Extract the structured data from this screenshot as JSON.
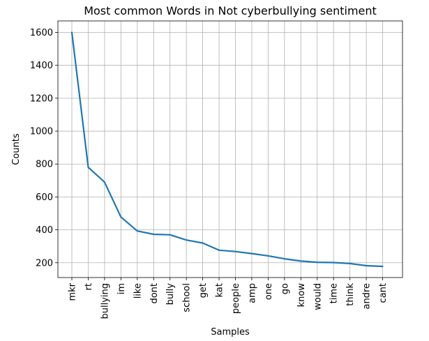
{
  "chart_data": {
    "type": "line",
    "title": "Most common Words in Not cyberbullying sentiment",
    "xlabel": "Samples",
    "ylabel": "Counts",
    "categories": [
      "mkr",
      "rt",
      "bullying",
      "im",
      "like",
      "dont",
      "bully",
      "school",
      "get",
      "kat",
      "people",
      "amp",
      "one",
      "go",
      "know",
      "would",
      "time",
      "think",
      "andre",
      "cant"
    ],
    "values": [
      1600,
      780,
      690,
      478,
      393,
      373,
      370,
      338,
      320,
      276,
      268,
      256,
      242,
      224,
      210,
      203,
      201,
      195,
      182,
      178
    ],
    "ylim": [
      110,
      1670
    ],
    "yticks": [
      200,
      400,
      600,
      800,
      1000,
      1200,
      1400,
      1600
    ],
    "grid": true,
    "line_color": "#1f77b4"
  }
}
